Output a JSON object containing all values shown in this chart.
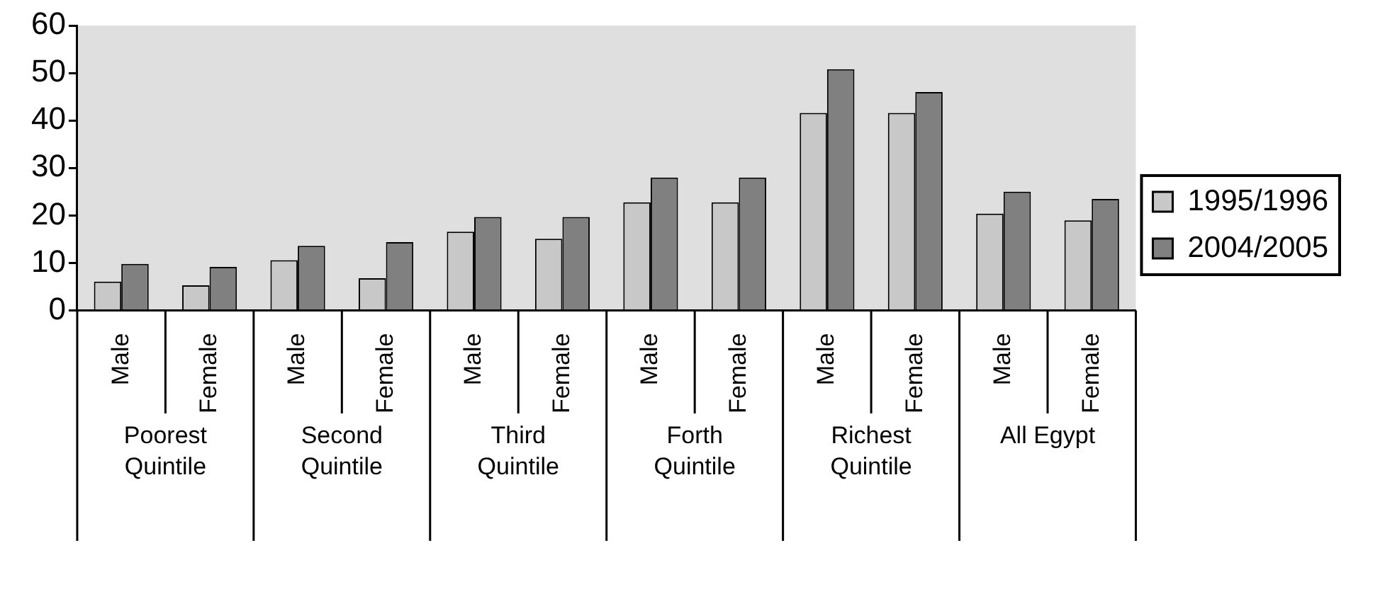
{
  "chart_data": {
    "type": "bar",
    "categories": [
      "Male",
      "Female",
      "Male",
      "Female",
      "Male",
      "Female",
      "Male",
      "Female",
      "Male",
      "Female",
      "Male",
      "Female"
    ],
    "series": [
      {
        "name": "1995/1996",
        "color": "#c8c8c8",
        "values": [
          6.1,
          5.3,
          10.6,
          6.8,
          16.6,
          15.1,
          22.8,
          22.8,
          41.6,
          41.6,
          20.4,
          19.0
        ]
      },
      {
        "name": "2004/2005",
        "color": "#808080",
        "values": [
          9.8,
          9.2,
          13.6,
          14.4,
          19.7,
          19.7,
          28.0,
          28.0,
          50.8,
          46.0,
          25.0,
          23.5
        ]
      }
    ],
    "annotations": [
      "Poorest Quintile",
      "Second Quintile",
      "Third Quintile",
      "Forth Quintile",
      "Richest Quintile",
      "All Egypt"
    ],
    "ylim": [
      0,
      60
    ],
    "yticks": [
      0,
      10,
      20,
      30,
      40,
      50,
      60
    ],
    "grid": false,
    "legend": "right"
  }
}
